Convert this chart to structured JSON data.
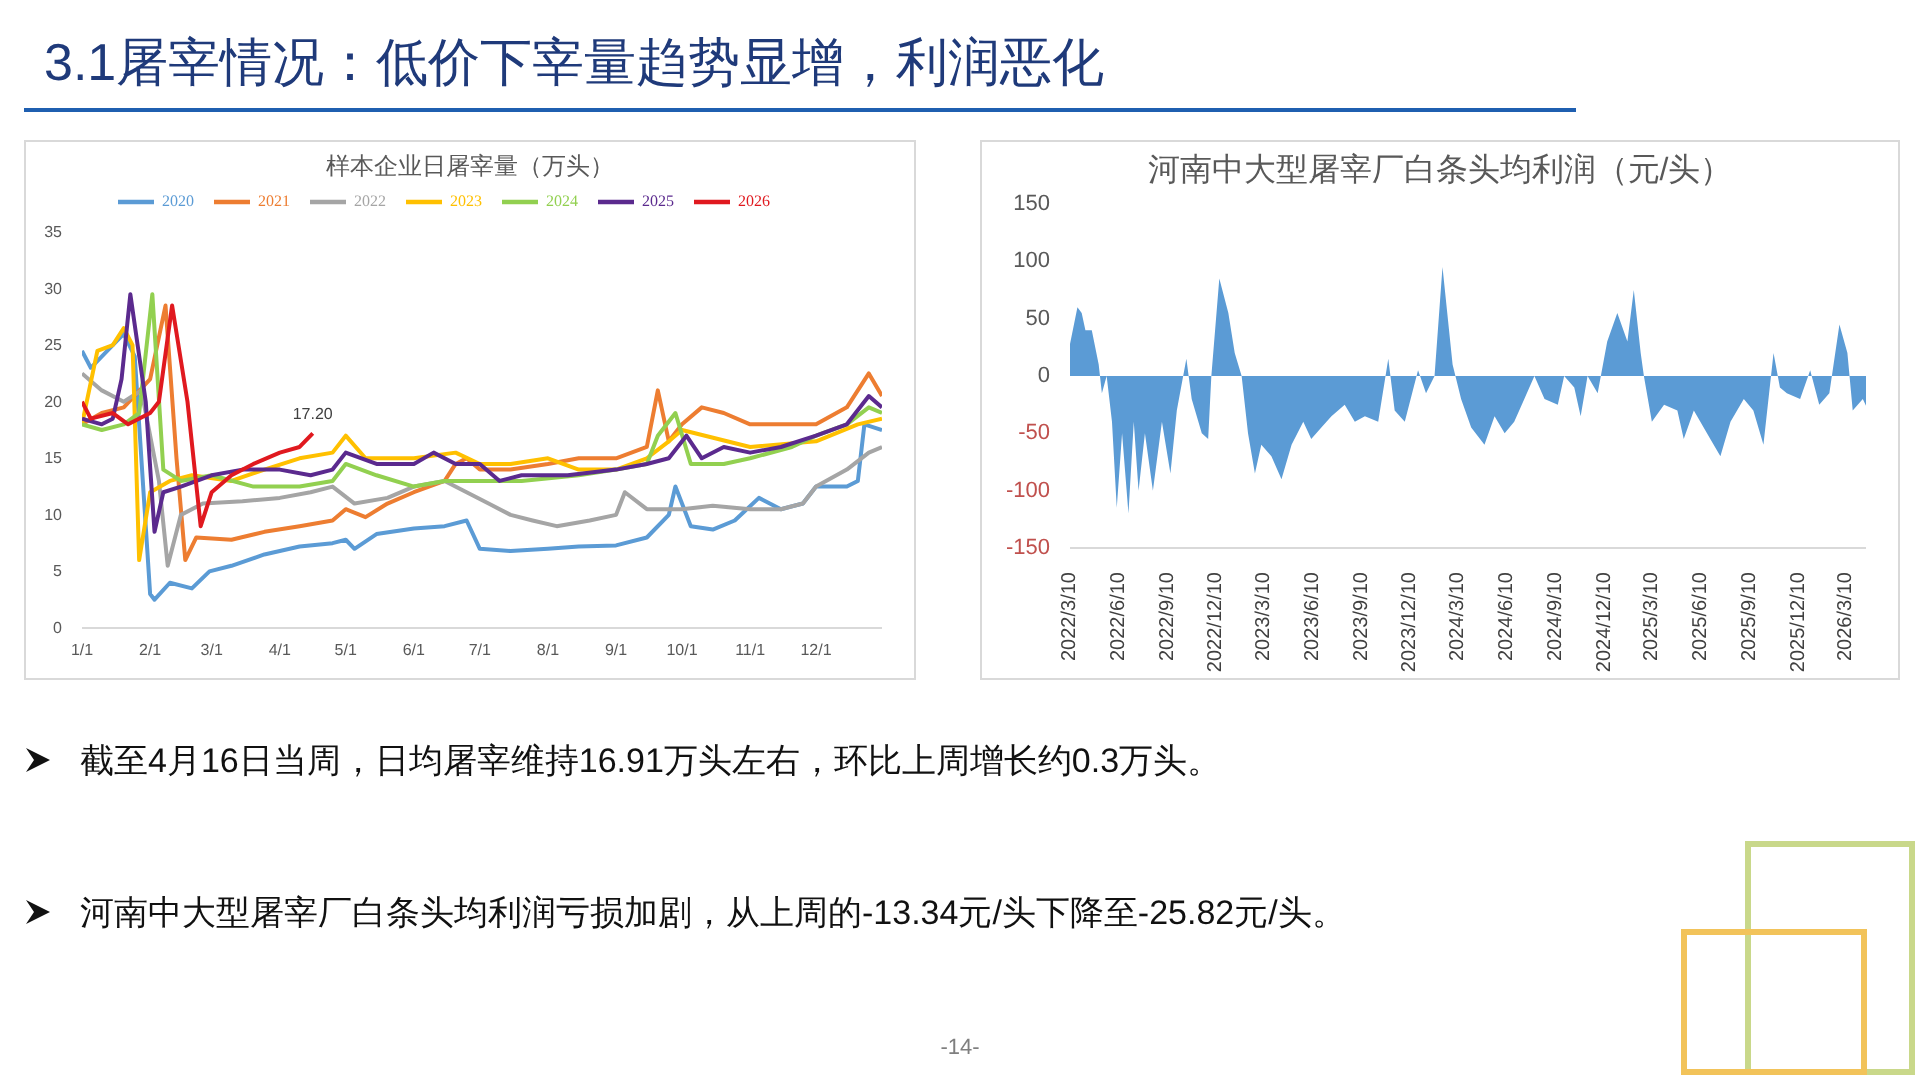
{
  "chart_data": [
    {
      "type": "line",
      "title": "样本企业日屠宰量（万头）",
      "ylim": [
        0,
        35
      ],
      "yticks": [
        0,
        5,
        10,
        15,
        20,
        25,
        30,
        35
      ],
      "xlim": [
        "--01-01",
        "--12-31"
      ],
      "xticks": [
        {
          "value": "--01-01",
          "label": "1/1"
        },
        {
          "value": "--02-01",
          "label": "2/1"
        },
        {
          "value": "--03-01",
          "label": "3/1"
        },
        {
          "value": "--04-01",
          "label": "4/1"
        },
        {
          "value": "--05-01",
          "label": "5/1"
        },
        {
          "value": "--06-01",
          "label": "6/1"
        },
        {
          "value": "--07-01",
          "label": "7/1"
        },
        {
          "value": "--08-01",
          "label": "8/1"
        },
        {
          "value": "--09-01",
          "label": "9/1"
        },
        {
          "value": "--10-01",
          "label": "10/1"
        },
        {
          "value": "--11-01",
          "label": "11/1"
        },
        {
          "value": "--12-01",
          "label": "12/1"
        }
      ],
      "legend": "top",
      "marker": "none",
      "annotations": [
        {
          "text": "17.20",
          "x": "--04-16",
          "y": 17.2
        }
      ],
      "series": [
        {
          "name": "2020",
          "color": "#5b9bd5",
          "x": [
            "--01-01",
            "--01-05",
            "--01-15",
            "--01-20",
            "--01-25",
            "--02-01",
            "--02-03",
            "--02-10",
            "--02-20",
            "--02-28",
            "--03-10",
            "--03-25",
            "--04-10",
            "--04-25",
            "--05-01",
            "--05-05",
            "--05-15",
            "--06-01",
            "--06-15",
            "--06-25",
            "--07-01",
            "--07-15",
            "--08-01",
            "--08-15",
            "--09-01",
            "--09-15",
            "--09-25",
            "--09-28",
            "--10-05",
            "--10-15",
            "--10-25",
            "--11-05",
            "--11-15",
            "--11-25",
            "--12-01",
            "--12-15",
            "--12-20",
            "--12-23",
            "--12-31"
          ],
          "values": [
            24.5,
            23,
            25,
            26,
            24,
            3,
            2.5,
            4,
            3.5,
            5,
            5.5,
            6.5,
            7.2,
            7.5,
            7.8,
            7,
            8.3,
            8.8,
            9,
            9.5,
            7,
            6.8,
            7,
            7.2,
            7.3,
            8,
            10,
            12.5,
            9,
            8.7,
            9.5,
            11.5,
            10.5,
            11,
            12.5,
            12.5,
            13,
            18,
            17.5
          ]
        },
        {
          "name": "2021",
          "color": "#ed7d31",
          "x": [
            "--01-01",
            "--01-10",
            "--01-20",
            "--02-01",
            "--02-08",
            "--02-13",
            "--02-17",
            "--02-22",
            "--03-10",
            "--03-25",
            "--04-10",
            "--04-25",
            "--05-01",
            "--05-10",
            "--05-20",
            "--06-01",
            "--06-15",
            "--06-20",
            "--06-25",
            "--07-01",
            "--07-15",
            "--08-01",
            "--08-15",
            "--09-01",
            "--09-15",
            "--09-20",
            "--09-25",
            "--10-01",
            "--10-10",
            "--10-20",
            "--11-01",
            "--11-15",
            "--12-01",
            "--12-15",
            "--12-25",
            "--12-31"
          ],
          "values": [
            18,
            19,
            19.5,
            22,
            28.5,
            15,
            6,
            8,
            7.8,
            8.5,
            9,
            9.5,
            10.5,
            9.8,
            11,
            12,
            13,
            14.5,
            15,
            14,
            14,
            14.5,
            15,
            15,
            16,
            21,
            16.5,
            18,
            19.5,
            19,
            18,
            18,
            18,
            19.5,
            22.5,
            20.5
          ]
        },
        {
          "name": "2022",
          "color": "#a5a5a5",
          "x": [
            "--01-01",
            "--01-10",
            "--01-20",
            "--01-28",
            "--02-05",
            "--02-09",
            "--02-15",
            "--02-25",
            "--03-15",
            "--04-01",
            "--04-15",
            "--04-25",
            "--05-05",
            "--05-20",
            "--06-01",
            "--06-15",
            "--06-25",
            "--07-05",
            "--07-15",
            "--07-25",
            "--08-05",
            "--08-20",
            "--09-01",
            "--09-05",
            "--09-15",
            "--10-01",
            "--10-15",
            "--11-01",
            "--11-15",
            "--11-25",
            "--12-01",
            "--12-15",
            "--12-25",
            "--12-31"
          ],
          "values": [
            22.5,
            21,
            20,
            21,
            13,
            5.5,
            10,
            11,
            11.2,
            11.5,
            12,
            12.5,
            11,
            11.5,
            12.5,
            13,
            12,
            11,
            10,
            9.5,
            9,
            9.5,
            10,
            12,
            10.5,
            10.5,
            10.8,
            10.5,
            10.5,
            11,
            12.5,
            14,
            15.5,
            16
          ]
        },
        {
          "name": "2023",
          "color": "#ffc000",
          "x": [
            "--01-01",
            "--01-08",
            "--01-15",
            "--01-20",
            "--01-24",
            "--01-27",
            "--02-01",
            "--02-10",
            "--02-20",
            "--03-10",
            "--03-25",
            "--04-10",
            "--04-25",
            "--05-01",
            "--05-10",
            "--06-01",
            "--06-20",
            "--07-01",
            "--07-15",
            "--08-01",
            "--08-15",
            "--09-01",
            "--09-15",
            "--09-25",
            "--10-01",
            "--11-01",
            "--12-01",
            "--12-20",
            "--12-31"
          ],
          "values": [
            18,
            24.5,
            25,
            26.5,
            25,
            6,
            12,
            13,
            13.5,
            13,
            14,
            15,
            15.5,
            17,
            15,
            15,
            15.5,
            14.5,
            14.5,
            15,
            14,
            14,
            15,
            16.5,
            17.5,
            16,
            16.5,
            18,
            18.5
          ]
        },
        {
          "name": "2024",
          "color": "#92d050",
          "x": [
            "--01-01",
            "--01-10",
            "--01-20",
            "--01-27",
            "--02-02",
            "--02-07",
            "--02-15",
            "--03-01",
            "--03-20",
            "--04-10",
            "--04-25",
            "--05-01",
            "--05-15",
            "--06-01",
            "--06-15",
            "--07-01",
            "--07-20",
            "--08-15",
            "--09-01",
            "--09-15",
            "--09-20",
            "--09-28",
            "--10-05",
            "--10-20",
            "--11-01",
            "--11-20",
            "--12-01",
            "--12-15",
            "--12-25",
            "--12-31"
          ],
          "values": [
            18,
            17.5,
            18,
            19,
            29.5,
            14,
            13,
            13.5,
            12.5,
            12.5,
            13,
            14.5,
            13.5,
            12.5,
            13,
            13,
            13,
            13.5,
            14,
            14.5,
            17,
            19,
            14.5,
            14.5,
            15,
            16,
            17,
            18,
            19.5,
            19
          ]
        },
        {
          "name": "2025",
          "color": "#5b2a8e",
          "x": [
            "--01-01",
            "--01-10",
            "--01-15",
            "--01-19",
            "--01-23",
            "--01-30",
            "--02-03",
            "--02-07",
            "--02-15",
            "--03-01",
            "--03-15",
            "--04-01",
            "--04-15",
            "--04-25",
            "--05-01",
            "--05-15",
            "--06-01",
            "--06-10",
            "--06-20",
            "--07-01",
            "--07-10",
            "--07-20",
            "--08-10",
            "--09-01",
            "--09-15",
            "--09-25",
            "--10-03",
            "--10-10",
            "--10-20",
            "--11-01",
            "--11-15",
            "--12-01",
            "--12-15",
            "--12-25",
            "--12-31"
          ],
          "values": [
            18.5,
            18,
            18.5,
            22,
            29.5,
            20,
            8.5,
            12,
            12.5,
            13.5,
            14,
            14,
            13.5,
            14,
            15.5,
            14.5,
            14.5,
            15.5,
            14.5,
            14.5,
            13,
            13.5,
            13.5,
            14,
            14.5,
            15,
            17,
            15,
            16,
            15.5,
            16,
            17,
            18,
            20.5,
            19.5
          ]
        },
        {
          "name": "2026",
          "color": "#e0191f",
          "x": [
            "--01-01",
            "--01-05",
            "--01-15",
            "--01-22",
            "--02-01",
            "--02-05",
            "--02-11",
            "--02-18",
            "--02-24",
            "--03-01",
            "--03-10",
            "--03-20",
            "--04-01",
            "--04-10",
            "--04-16"
          ],
          "values": [
            20,
            18.5,
            19,
            18,
            19,
            20,
            28.5,
            20,
            9,
            12,
            13.5,
            14.5,
            15.5,
            16,
            17.2
          ]
        }
      ]
    },
    {
      "type": "area",
      "title": "河南中大型屠宰厂白条头均利润（元/头）",
      "ylim": [
        -150,
        150
      ],
      "yticks": [
        -150,
        -100,
        -50,
        0,
        50,
        100,
        150
      ],
      "xlim": [
        "2022-03-10",
        "2026-04-16"
      ],
      "xticks": [
        {
          "value": "2022-03-10",
          "label": "2022/3/10"
        },
        {
          "value": "2022-06-10",
          "label": "2022/6/10"
        },
        {
          "value": "2022-09-10",
          "label": "2022/9/10"
        },
        {
          "value": "2022-12-10",
          "label": "2022/12/10"
        },
        {
          "value": "2023-03-10",
          "label": "2023/3/10"
        },
        {
          "value": "2023-06-10",
          "label": "2023/6/10"
        },
        {
          "value": "2023-09-10",
          "label": "2023/9/10"
        },
        {
          "value": "2023-12-10",
          "label": "2023/12/10"
        },
        {
          "value": "2024-03-10",
          "label": "2024/3/10"
        },
        {
          "value": "2024-06-10",
          "label": "2024/6/10"
        },
        {
          "value": "2024-09-10",
          "label": "2024/9/10"
        },
        {
          "value": "2024-12-10",
          "label": "2024/12/10"
        },
        {
          "value": "2025-03-10",
          "label": "2025/3/10"
        },
        {
          "value": "2025-06-10",
          "label": "2025/6/10"
        },
        {
          "value": "2025-09-10",
          "label": "2025/9/10"
        },
        {
          "value": "2025-12-10",
          "label": "2025/12/10"
        },
        {
          "value": "2026-03-10",
          "label": "2026/3/10"
        }
      ],
      "legend": false,
      "series": [
        {
          "color": "#5b9bd5",
          "x": [
            "2022-03-10",
            "2022-03-24",
            "2022-04-01",
            "2022-04-08",
            "2022-04-20",
            "2022-05-03",
            "2022-05-09",
            "2022-05-18",
            "2022-05-28",
            "2022-06-06",
            "2022-06-16",
            "2022-06-28",
            "2022-07-08",
            "2022-07-17",
            "2022-07-29",
            "2022-08-13",
            "2022-08-30",
            "2022-09-15",
            "2022-09-27",
            "2022-10-15",
            "2022-10-25",
            "2022-11-13",
            "2022-11-25",
            "2022-12-01",
            "2022-12-16",
            "2023-01-02",
            "2023-01-14",
            "2023-01-27",
            "2023-02-08",
            "2023-02-21",
            "2023-03-05",
            "2023-03-24",
            "2023-04-12",
            "2023-05-01",
            "2023-05-23",
            "2023-06-07",
            "2023-06-26",
            "2023-07-15",
            "2023-08-09",
            "2023-08-28",
            "2023-09-16",
            "2023-10-11",
            "2023-10-30",
            "2023-11-11",
            "2023-11-30",
            "2023-12-25",
            "2024-01-09",
            "2024-01-25",
            "2024-02-09",
            "2024-02-28",
            "2024-03-15",
            "2024-04-03",
            "2024-04-28",
            "2024-05-17",
            "2024-06-05",
            "2024-06-23",
            "2024-07-12",
            "2024-07-31",
            "2024-08-19",
            "2024-09-13",
            "2024-09-25",
            "2024-10-14",
            "2024-10-26",
            "2024-11-08",
            "2024-11-27",
            "2024-12-15",
            "2025-01-03",
            "2025-01-22",
            "2025-02-03",
            "2025-02-16",
            "2025-02-22",
            "2025-03-09",
            "2025-04-01",
            "2025-04-26",
            "2025-05-08",
            "2025-05-27",
            "2025-06-27",
            "2025-07-16",
            "2025-08-04",
            "2025-08-29",
            "2025-09-16",
            "2025-10-05",
            "2025-10-24",
            "2025-11-05",
            "2025-11-18",
            "2025-12-13",
            "2026-01-01",
            "2026-01-18",
            "2026-02-06",
            "2026-02-25",
            "2026-03-12",
            "2026-03-22",
            "2026-04-10",
            "2026-04-16"
          ],
          "values": [
            28,
            60,
            55,
            40,
            40,
            10,
            -15,
            0,
            -40,
            -115,
            -50,
            -120,
            -40,
            -100,
            -50,
            -100,
            -40,
            -85,
            -30,
            15,
            -20,
            -50,
            -55,
            0,
            85,
            55,
            20,
            0,
            -50,
            -85,
            -60,
            -70,
            -90,
            -60,
            -40,
            -55,
            -45,
            -35,
            -25,
            -40,
            -35,
            -40,
            15,
            -30,
            -40,
            5,
            -15,
            0,
            95,
            10,
            -20,
            -45,
            -60,
            -35,
            -50,
            -40,
            -20,
            0,
            -20,
            -25,
            0,
            -10,
            -35,
            0,
            -15,
            30,
            55,
            30,
            75,
            20,
            0,
            -40,
            -25,
            -30,
            -55,
            -30,
            -55,
            -70,
            -40,
            -20,
            -30,
            -60,
            20,
            -10,
            -15,
            -20,
            5,
            -25,
            -15,
            45,
            20,
            -30,
            -20,
            -26
          ]
        }
      ]
    },
    {
      "type": "other",
      "title": "3.1屠宰情况：低价下宰量趋势显增，利润恶化",
      "annotations": [
        "截至4月16日当周，日均屠宰维持16.91万头左右，环比上周增长约0.3万头。",
        "河南中大型屠宰厂白条头均利润亏损加剧，从上周的-13.34元/头下降至-25.82元/头。",
        "-14-"
      ]
    }
  ]
}
